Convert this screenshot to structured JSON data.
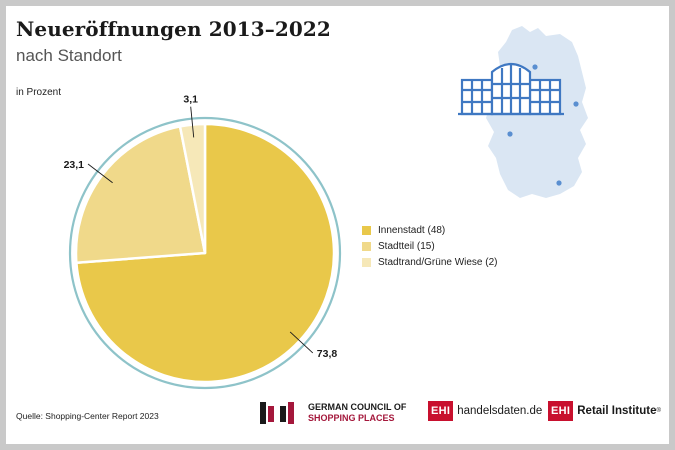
{
  "title": "Neueröffnungen 2013–2022",
  "subtitle": "nach Standort",
  "unit_label": "in Prozent",
  "source": "Quelle: Shopping-Center Report 2023",
  "chart_data": {
    "type": "pie",
    "title": "Neueröffnungen 2013–2022",
    "subtitle": "nach Standort",
    "unit": "in Prozent",
    "legend_position": "right",
    "slices": [
      {
        "label": "Innenstadt (48)",
        "value": 73.8,
        "value_label": "73,8",
        "color": "#e9c84a"
      },
      {
        "label": "Stadtteil (15)",
        "value": 23.1,
        "value_label": "23,1",
        "color": "#f0d98a"
      },
      {
        "label": "Stadtrand/Grüne Wiese (2)",
        "value": 3.1,
        "value_label": "3,1",
        "color": "#f6e8b8"
      }
    ],
    "ring_color": "#8ec3c9"
  },
  "logos": {
    "gccsp_line1": "GERMAN COUNCIL OF",
    "gccsp_line2": "SHOPPING PLACES",
    "ehi_box": "EHI",
    "ehi1_text": "handelsdaten.de",
    "ehi2_text": "Retail Institute",
    "ehi2_mark": "®"
  },
  "icons": {
    "map": "germany-map-icon",
    "building": "shopping-center-icon"
  }
}
